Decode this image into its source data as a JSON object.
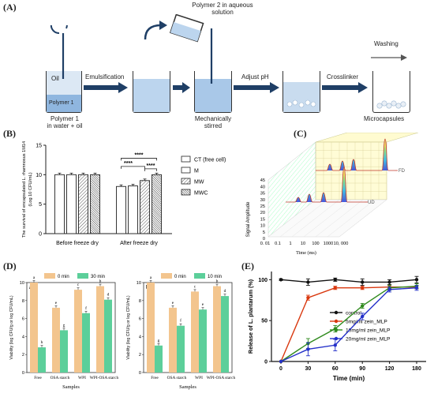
{
  "panel_a": {
    "letter": "(A)",
    "polymer2_label": "Polymer 2 in aqueous\nsolution",
    "oil_label": "Oil",
    "polymer1_tag": "Polymer 1",
    "polymer1_caption": "Polymer 1\nin water + oil",
    "step1": "Emulsification",
    "step2": "Adjust pH",
    "step3": "Crosslinker",
    "stirred_caption": "Mechanically\nstirred",
    "washing": "Washing",
    "microcapsules": "Microcapsules",
    "colors": {
      "oil": "#dce8f4",
      "polymer1": "#8fb6df",
      "liquid": "#a9c8e8",
      "arrow": "#1f3f66"
    }
  },
  "panel_b": {
    "letter": "(B)",
    "chart_data": {
      "type": "bar",
      "categories": [
        "Before freeze dry",
        "After freeze dry"
      ],
      "series": [
        {
          "name": "CT (free cell)",
          "values": [
            10.0,
            8.0
          ]
        },
        {
          "name": "M",
          "values": [
            10.0,
            8.1
          ]
        },
        {
          "name": "MW",
          "values": [
            10.0,
            9.0
          ]
        },
        {
          "name": "MWC",
          "values": [
            10.0,
            10.0
          ]
        }
      ],
      "ylabel": "The survival of  encapsulated L. rhamnosus 1M14\n(Log 10 CFU/mL)",
      "ylim": [
        0,
        15
      ],
      "yticks": [
        "0",
        "5",
        "10",
        "15"
      ],
      "significance": [
        "****",
        "****",
        "****"
      ],
      "legend_position": "right"
    }
  },
  "panel_c": {
    "letter": "(C)",
    "chart_data": {
      "type": "line",
      "ylabel": "Signal Amplitude",
      "xlabel": "Time (ms)",
      "yticks": [
        "0",
        "5",
        "10",
        "15",
        "20",
        "25",
        "30",
        "35",
        "40",
        "45"
      ],
      "xticks": [
        "0. 01",
        "0.1",
        "1",
        "10",
        "100",
        "1000",
        "10, 000"
      ],
      "series": [
        {
          "name": "FD"
        },
        {
          "name": "UD"
        }
      ]
    }
  },
  "panel_d": {
    "letter": "(D)",
    "chart_data": [
      {
        "type": "bar",
        "panel": "a",
        "categories": [
          "Free",
          "OSA starch",
          "WPI",
          "WPI-OSA starch"
        ],
        "series": [
          {
            "name": "0 min",
            "values": [
              10.0,
              7.2,
              9.2,
              9.6
            ],
            "letters": [
              "a",
              "e",
              "c",
              "b"
            ]
          },
          {
            "name": "30 min",
            "values": [
              2.8,
              4.7,
              6.6,
              8.1
            ],
            "letters": [
              "h",
              "g",
              "f",
              "d"
            ]
          }
        ],
        "xlabel": "Samples",
        "ylabel": "Viability (log CFU/g or log CFU/mL)",
        "ylim": [
          0,
          10
        ],
        "yticks": [
          "0",
          "2",
          "4",
          "6",
          "8",
          "10"
        ]
      },
      {
        "type": "bar",
        "panel": "b",
        "categories": [
          "Free",
          "OSA starch",
          "WPI",
          "WPI-OSA starch"
        ],
        "series": [
          {
            "name": "0 min",
            "values": [
              10.0,
              7.2,
              9.0,
              9.6
            ],
            "letters": [
              "a",
              "e",
              "c",
              "b"
            ]
          },
          {
            "name": "10 min",
            "values": [
              3.0,
              5.2,
              7.0,
              8.5
            ],
            "letters": [
              "g",
              "f",
              "e",
              "d"
            ]
          }
        ],
        "xlabel": "Samples",
        "ylabel": "Viability (log CFU/g or log CFU/mL)",
        "ylim": [
          0,
          10
        ],
        "yticks": [
          "0",
          "2",
          "4",
          "6",
          "8",
          "10"
        ]
      }
    ],
    "colors": {
      "zero": "#f3c58e",
      "treated": "#5ccf9a"
    }
  },
  "panel_e": {
    "letter": "(E)",
    "chart_data": {
      "type": "line",
      "x": [
        0,
        30,
        60,
        90,
        120,
        180
      ],
      "xticks": [
        "0",
        "30",
        "60",
        "90",
        "120",
        "180"
      ],
      "yticks": [
        "0",
        "50",
        "100"
      ],
      "ylim": [
        0,
        110
      ],
      "xlabel": "Time (min)",
      "ylabel": "Release of L. plantarum (%)",
      "legend_position": "inside-right",
      "series": [
        {
          "name": "control",
          "color": "#111111",
          "values": [
            100,
            97,
            100,
            97,
            97,
            100
          ],
          "err": [
            1,
            4,
            2,
            4,
            3,
            4
          ]
        },
        {
          "name": "5mg/ml zein_MLP",
          "color": "#d9380f",
          "values": [
            0,
            78,
            90,
            90,
            91,
            91
          ],
          "err": [
            0,
            3,
            2,
            2,
            2,
            2
          ]
        },
        {
          "name": "10mg/ml zein_MLP",
          "color": "#2f8a1d",
          "values": [
            0,
            22,
            40,
            68,
            90,
            92
          ],
          "err": [
            0,
            6,
            4,
            3,
            3,
            3
          ]
        },
        {
          "name": "20mg/ml zein_MLP",
          "color": "#2430c9",
          "values": [
            0,
            15,
            20,
            55,
            88,
            90
          ],
          "err": [
            0,
            8,
            7,
            4,
            3,
            3
          ]
        }
      ]
    }
  }
}
